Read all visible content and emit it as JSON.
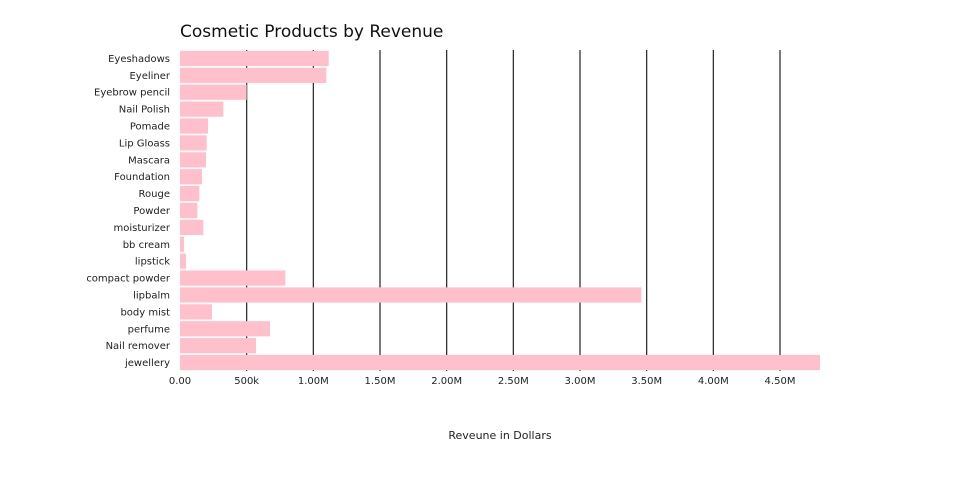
{
  "chart_data": {
    "type": "bar",
    "orientation": "horizontal",
    "title": "Cosmetic Products by Revenue",
    "xlabel": "Reveune in Dollars",
    "ylabel": "",
    "xlim": [
      0,
      4800000
    ],
    "grid": "vertical lines at x ticks",
    "bar_color": "#ffc0cb",
    "categories": [
      "Eyeshadows",
      "Eyeliner",
      "Eyebrow pencil",
      "Nail Polish",
      "Pomade",
      "Lip Gloass",
      "Mascara",
      "Foundation",
      "Rouge",
      "Powder",
      "moisturizer",
      "bb cream",
      "lipstick",
      "compact powder",
      "lipbalm",
      "body mist",
      "perfume",
      "Nail remover",
      "jewellery"
    ],
    "values": [
      1115000,
      1097000,
      500000,
      325000,
      210000,
      200000,
      195000,
      165000,
      145000,
      130000,
      175000,
      30000,
      45000,
      790000,
      3460000,
      240000,
      675000,
      570000,
      4800000
    ],
    "x_ticks": [
      {
        "value": 0,
        "label": "0.00"
      },
      {
        "value": 500000,
        "label": "500k"
      },
      {
        "value": 1000000,
        "label": "1.00M"
      },
      {
        "value": 1500000,
        "label": "1.50M"
      },
      {
        "value": 2000000,
        "label": "2.00M"
      },
      {
        "value": 2500000,
        "label": "2.50M"
      },
      {
        "value": 3000000,
        "label": "3.00M"
      },
      {
        "value": 3500000,
        "label": "3.50M"
      },
      {
        "value": 4000000,
        "label": "4.00M"
      },
      {
        "value": 4500000,
        "label": "4.50M"
      }
    ]
  }
}
